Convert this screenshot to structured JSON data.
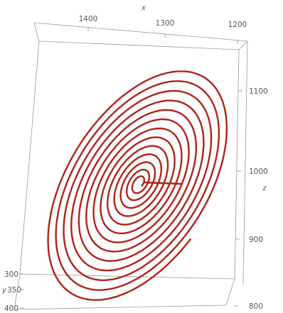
{
  "chart_data": {
    "type": "line",
    "dimensions": 3,
    "title": "",
    "axes": {
      "x": {
        "label": "x",
        "ticks": [
          1400,
          1300,
          1200
        ],
        "range": [
          1200,
          1450
        ]
      },
      "y": {
        "label": "y",
        "ticks": [
          300,
          350,
          400
        ],
        "range": [
          300,
          400
        ]
      },
      "z": {
        "label": "z",
        "ticks": [
          1100,
          1000,
          900,
          800
        ],
        "range": [
          790,
          1150
        ]
      }
    },
    "series": [
      {
        "description_shape": "inward spiral converging to a fixed point",
        "color": "#b22218",
        "start": {
          "x": 1395,
          "y": 390,
          "z": 800
        },
        "center": {
          "x": 1320,
          "y": 350,
          "z": 985
        },
        "tail_end": {
          "x": 1285,
          "y": 345,
          "z": 990
        },
        "loops": 13,
        "outer_loop_z_range": [
          820,
          1145
        ]
      }
    ],
    "grid": false,
    "box": true
  },
  "style": {
    "curve_color": "#b22218",
    "box_color": "#9a9a9a",
    "text_color": "#555555"
  }
}
